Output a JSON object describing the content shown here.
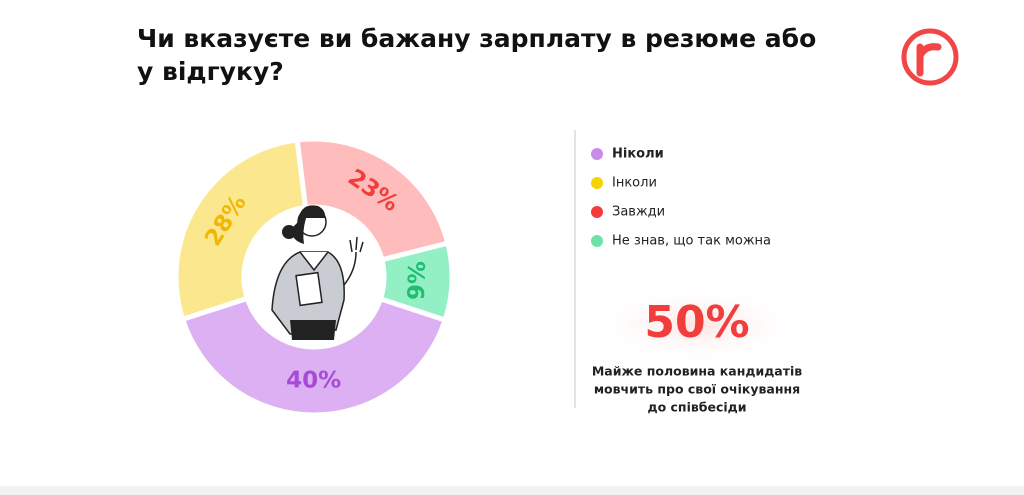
{
  "chart_data": {
    "type": "pie",
    "title": "Чи вказуєте ви бажану зарплату в резюме або у відгуку?",
    "categories": [
      "Ніколи",
      "Інколи",
      "Завжди",
      "Не знав, що так можна"
    ],
    "values": [
      40,
      28,
      23,
      9
    ],
    "value_labels": [
      "40%",
      "28%",
      "23%",
      "9%"
    ],
    "colors": [
      "#dcb0f2",
      "#fbe88e",
      "#ffbcbc",
      "#93f0c4"
    ],
    "label_colors": [
      "#a64bd6",
      "#f2b705",
      "#f23d3d",
      "#1fbd72"
    ],
    "legend_colors": [
      "#c98ae8",
      "#f5d400",
      "#f43c3c",
      "#6de2a9"
    ]
  },
  "callout": {
    "headline": "50%",
    "text": [
      "Майже половина кандидатів",
      "мовчить про свої очікування",
      "до співбесіди"
    ]
  }
}
